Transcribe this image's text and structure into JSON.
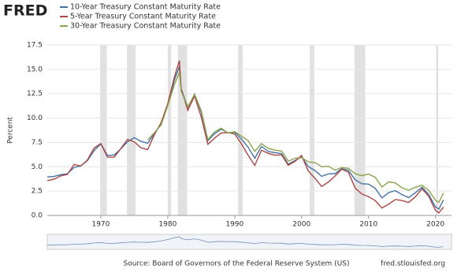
{
  "logo": "FRED",
  "chart_data": {
    "type": "line",
    "y_label": "Percent",
    "source": "Source: Board of Governors of the Federal Reserve System (US)",
    "site": "fred.stlouisfed.org",
    "x": [
      1962,
      1963,
      1964,
      1965,
      1966,
      1967,
      1968,
      1969,
      1970,
      1971,
      1972,
      1973,
      1974,
      1975,
      1976,
      1977,
      1978,
      1979,
      1980,
      1981,
      1981.75,
      1982,
      1983,
      1984,
      1985,
      1986,
      1987,
      1988,
      1989,
      1990,
      1991,
      1992,
      1993,
      1994,
      1995,
      1996,
      1997,
      1998,
      1999,
      2000,
      2001,
      2002,
      2003,
      2004,
      2005,
      2006,
      2007,
      2008,
      2009,
      2010,
      2011,
      2012,
      2013,
      2014,
      2015,
      2016,
      2017,
      2018,
      2019,
      2020,
      2020.5,
      2021.2
    ],
    "series": [
      {
        "name": "10-Year Treasury Constant Maturity Rate",
        "color": "#4572a7",
        "values": [
          3.95,
          4.0,
          4.19,
          4.28,
          4.93,
          5.07,
          5.64,
          6.67,
          7.35,
          6.16,
          6.21,
          6.85,
          7.56,
          7.99,
          7.61,
          7.42,
          8.41,
          9.43,
          11.43,
          13.92,
          15.3,
          13.01,
          11.1,
          12.46,
          10.62,
          7.67,
          8.39,
          8.85,
          8.49,
          8.55,
          7.86,
          7.01,
          5.87,
          7.09,
          6.57,
          6.44,
          6.35,
          5.26,
          5.65,
          6.03,
          5.02,
          4.61,
          4.01,
          4.27,
          4.29,
          4.8,
          4.63,
          3.66,
          3.26,
          3.22,
          2.78,
          1.8,
          2.35,
          2.54,
          2.14,
          1.84,
          2.33,
          2.91,
          2.14,
          0.89,
          0.65,
          1.6
        ]
      },
      {
        "name": "5-Year Treasury Constant Maturity Rate",
        "color": "#aa4643",
        "values": [
          3.57,
          3.72,
          4.06,
          4.22,
          5.23,
          5.07,
          5.7,
          6.93,
          7.38,
          5.99,
          5.98,
          6.87,
          7.81,
          7.55,
          6.94,
          6.76,
          8.29,
          9.52,
          11.48,
          14.24,
          15.9,
          13.01,
          10.79,
          12.26,
          10.12,
          7.3,
          7.94,
          8.47,
          8.5,
          8.37,
          7.37,
          6.19,
          5.14,
          6.69,
          6.38,
          6.18,
          6.22,
          5.15,
          5.55,
          6.16,
          4.56,
          3.82,
          2.97,
          3.43,
          4.05,
          4.75,
          4.43,
          2.8,
          2.2,
          1.93,
          1.52,
          0.76,
          1.17,
          1.64,
          1.53,
          1.33,
          1.91,
          2.75,
          1.96,
          0.53,
          0.27,
          0.86
        ]
      },
      {
        "name": "30-Year Treasury Constant Maturity Rate",
        "color": "#89a54e",
        "values": [
          null,
          null,
          null,
          null,
          null,
          null,
          null,
          null,
          null,
          null,
          null,
          null,
          null,
          null,
          null,
          7.75,
          8.49,
          9.28,
          11.27,
          13.45,
          14.7,
          12.76,
          11.18,
          12.41,
          10.79,
          7.78,
          8.59,
          8.96,
          8.45,
          8.61,
          8.14,
          7.67,
          6.59,
          7.37,
          6.88,
          6.71,
          6.61,
          5.58,
          5.87,
          5.94,
          5.49,
          5.43,
          5.0,
          5.05,
          4.65,
          4.91,
          4.84,
          4.28,
          4.08,
          4.25,
          3.91,
          2.92,
          3.45,
          3.34,
          2.84,
          2.59,
          2.89,
          3.11,
          2.58,
          1.56,
          1.35,
          2.3
        ]
      }
    ],
    "recessions": [
      [
        1969.9,
        1970.9
      ],
      [
        1973.9,
        1975.2
      ],
      [
        1980.0,
        1980.5
      ],
      [
        1981.5,
        1982.9
      ],
      [
        1990.5,
        1991.2
      ],
      [
        2001.2,
        2001.9
      ],
      [
        2007.9,
        2009.5
      ],
      [
        2020.1,
        2020.4
      ]
    ],
    "recession_color": "#e1e1e1",
    "xlim": [
      1962,
      2022.4
    ],
    "xticks": [
      1970,
      1980,
      1990,
      2000,
      2010,
      2020
    ],
    "ylim": [
      0,
      17.5
    ],
    "yticks": [
      {
        "value": 0,
        "label": "0.0"
      },
      2.5,
      {
        "value": 5,
        "label": "5.0"
      },
      7.5,
      {
        "value": 10,
        "label": "10.0"
      },
      12.5,
      {
        "value": 15,
        "label": "15.0"
      },
      17.5
    ],
    "grid": true
  }
}
